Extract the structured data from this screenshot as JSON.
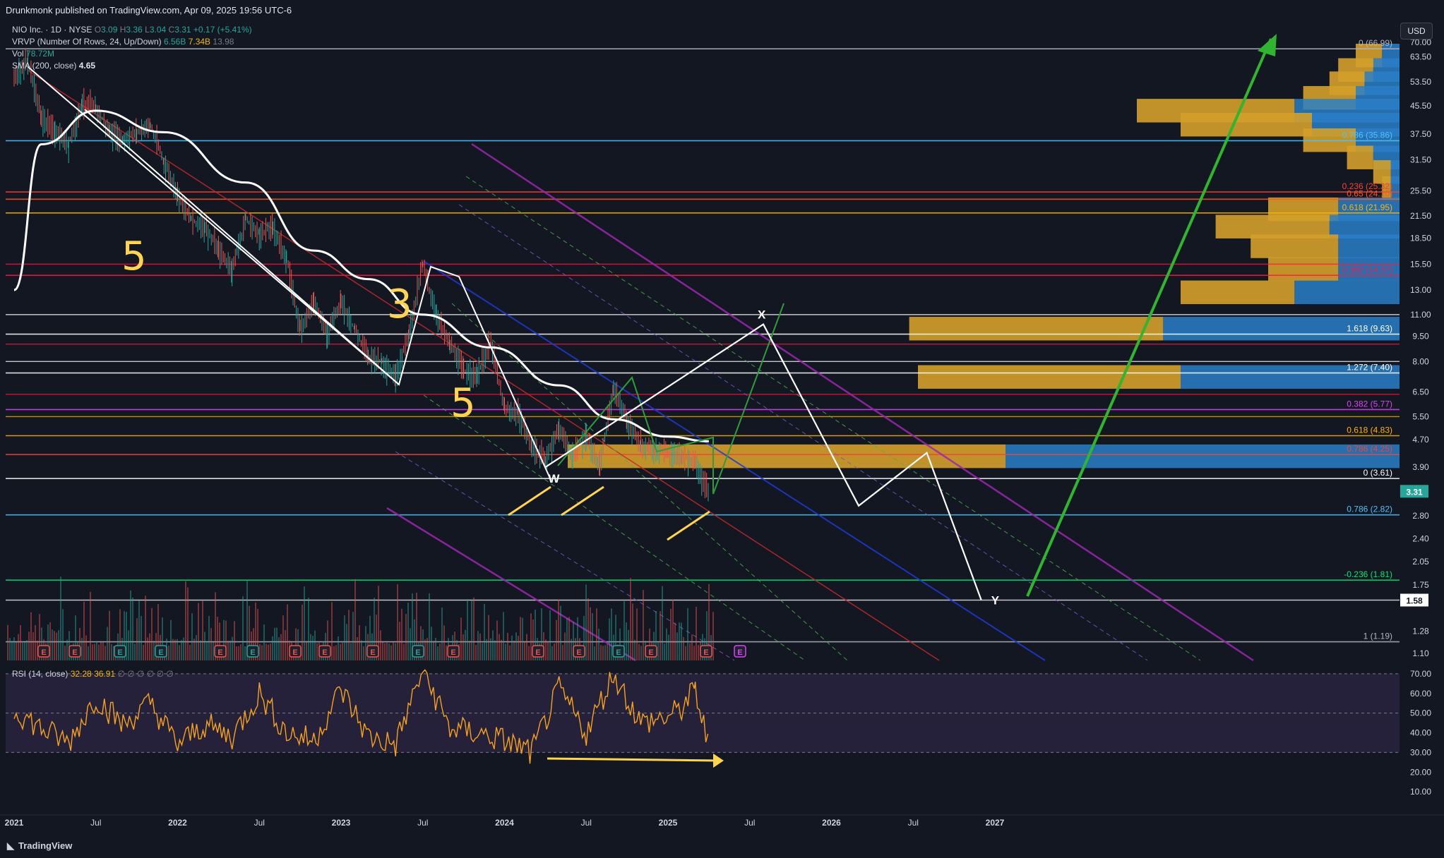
{
  "header": {
    "published": "Drunkmonk published on TradingView.com, Apr 09, 2025 19:56 UTC-6",
    "symbol": "NIO Inc. · 1D · NYSE",
    "ohlc": {
      "o_label": "O",
      "o": "3.09",
      "h_label": "H",
      "h": "3.36",
      "l_label": "L",
      "l": "3.04",
      "c_label": "C",
      "c": "3.31",
      "change": "+0.17 (+5.41%)"
    },
    "vrvp_label": "VRVP (Number Of Rows, 24, Up/Down)",
    "vrvp_up": "6.56B",
    "vrvp_down": "7.34B",
    "vrvp_total": "13.98",
    "vol_label": "Vol",
    "vol": "78.72M",
    "sma_label": "SMA (200, close)",
    "sma": "4.65",
    "rsi_label": "RSI (14, close)",
    "rsi1": "32.28",
    "rsi2": "36.91",
    "rsi_tail": "∅ ∅ ∅ ∅ ∅ ∅",
    "currency": "USD",
    "brand": "TradingView"
  },
  "colors": {
    "bg": "#131722",
    "up": "#26a69a",
    "down": "#ef5350",
    "sma": "#ffffff",
    "rsi": "#f7a21b",
    "rsi_band": "#2a2340",
    "gold": "#d4a02a",
    "blue": "#2a7fc7"
  },
  "chart_data": {
    "type": "line",
    "title": "NIO Inc. · 1D · NYSE",
    "y_scale": "log",
    "price_axis_ticks": [
      "70.00",
      "63.50",
      "53.50",
      "45.50",
      "37.50",
      "31.50",
      "25.50",
      "21.50",
      "18.50",
      "15.50",
      "13.00",
      "11.00",
      "9.50",
      "8.00",
      "6.50",
      "5.50",
      "4.70",
      "3.90",
      "2.80",
      "2.40",
      "2.05",
      "1.75",
      "1.28",
      "1.10"
    ],
    "time_axis_ticks": [
      "2021",
      "Jul",
      "2022",
      "Jul",
      "2023",
      "Jul",
      "2024",
      "Jul",
      "2025",
      "Jul",
      "2026",
      "Jul",
      "2027"
    ],
    "rsi_axis_ticks": [
      "70.00",
      "60.00",
      "50.00",
      "40.00",
      "30.00",
      "20.00",
      "10.00"
    ],
    "last_price": "3.31",
    "marked_price": "1.58",
    "price_series": [
      {
        "date": "2021-01",
        "close": 55
      },
      {
        "date": "2021-02",
        "close": 62
      },
      {
        "date": "2021-03",
        "close": 42
      },
      {
        "date": "2021-04",
        "close": 38
      },
      {
        "date": "2021-05",
        "close": 35
      },
      {
        "date": "2021-06",
        "close": 46
      },
      {
        "date": "2021-07",
        "close": 45
      },
      {
        "date": "2021-08",
        "close": 38
      },
      {
        "date": "2021-09",
        "close": 36
      },
      {
        "date": "2021-10",
        "close": 38
      },
      {
        "date": "2021-11",
        "close": 40
      },
      {
        "date": "2021-12",
        "close": 31
      },
      {
        "date": "2022-01",
        "close": 25
      },
      {
        "date": "2022-02",
        "close": 21
      },
      {
        "date": "2022-03",
        "close": 20
      },
      {
        "date": "2022-04",
        "close": 17
      },
      {
        "date": "2022-05",
        "close": 15
      },
      {
        "date": "2022-06",
        "close": 21
      },
      {
        "date": "2022-07",
        "close": 19
      },
      {
        "date": "2022-08",
        "close": 20
      },
      {
        "date": "2022-09",
        "close": 16
      },
      {
        "date": "2022-10",
        "close": 10
      },
      {
        "date": "2022-11",
        "close": 12
      },
      {
        "date": "2022-12",
        "close": 9.7
      },
      {
        "date": "2023-01",
        "close": 12
      },
      {
        "date": "2023-02",
        "close": 10
      },
      {
        "date": "2023-03",
        "close": 8.3
      },
      {
        "date": "2023-04",
        "close": 8.0
      },
      {
        "date": "2023-05",
        "close": 7.2
      },
      {
        "date": "2023-06",
        "close": 9.7
      },
      {
        "date": "2023-07",
        "close": 15.5
      },
      {
        "date": "2023-08",
        "close": 11
      },
      {
        "date": "2023-09",
        "close": 9.0
      },
      {
        "date": "2023-10",
        "close": 7.5
      },
      {
        "date": "2023-11",
        "close": 7.3
      },
      {
        "date": "2023-12",
        "close": 9.1
      },
      {
        "date": "2024-01",
        "close": 5.8
      },
      {
        "date": "2024-02",
        "close": 5.6
      },
      {
        "date": "2024-03",
        "close": 4.5
      },
      {
        "date": "2024-04",
        "close": 4.1
      },
      {
        "date": "2024-05",
        "close": 5.1
      },
      {
        "date": "2024-06",
        "close": 4.2
      },
      {
        "date": "2024-07",
        "close": 4.8
      },
      {
        "date": "2024-08",
        "close": 3.9
      },
      {
        "date": "2024-09",
        "close": 6.7
      },
      {
        "date": "2024-10",
        "close": 5.3
      },
      {
        "date": "2024-11",
        "close": 4.5
      },
      {
        "date": "2024-12",
        "close": 4.4
      },
      {
        "date": "2025-01",
        "close": 4.3
      },
      {
        "date": "2025-02",
        "close": 4.2
      },
      {
        "date": "2025-03",
        "close": 4.0
      },
      {
        "date": "2025-04",
        "close": 3.31
      }
    ],
    "sma_series": [
      {
        "date": "2021-01",
        "value": 13
      },
      {
        "date": "2021-03",
        "value": 35
      },
      {
        "date": "2021-07",
        "value": 44
      },
      {
        "date": "2021-12",
        "value": 38
      },
      {
        "date": "2022-06",
        "value": 27
      },
      {
        "date": "2022-11",
        "value": 17
      },
      {
        "date": "2023-03",
        "value": 14
      },
      {
        "date": "2023-07",
        "value": 11
      },
      {
        "date": "2023-12",
        "value": 8.8
      },
      {
        "date": "2024-05",
        "value": 6.8
      },
      {
        "date": "2024-09",
        "value": 5.4
      },
      {
        "date": "2025-01",
        "value": 4.8
      },
      {
        "date": "2025-04",
        "value": 4.65
      }
    ],
    "projection": [
      {
        "date": "2024-04",
        "value": 3.9,
        "label": "W"
      },
      {
        "date": "2025-08",
        "value": 10.3,
        "label": "X"
      },
      {
        "date": "2026-03",
        "value": 3.0
      },
      {
        "date": "2026-08",
        "value": 4.3
      },
      {
        "date": "2026-12",
        "value": 1.58,
        "label": "Y"
      }
    ],
    "fib_levels": [
      {
        "label": "0 (66.99)",
        "value": 66.99
      },
      {
        "label": "0.786 (35.86)",
        "value": 35.86
      },
      {
        "label": "0.236 (25.32)",
        "value": 25.32
      },
      {
        "label": "0.65 (24.10)",
        "value": 24.1
      },
      {
        "label": "0.618 (21.95)",
        "value": 21.95
      },
      {
        "label": "0.382 (14.37)",
        "value": 14.37
      },
      {
        "label": "1.618 (9.63)",
        "value": 9.63
      },
      {
        "label": "1.272 (7.40)",
        "value": 7.4
      },
      {
        "label": "0.382 (5.77)",
        "value": 5.77
      },
      {
        "label": "0.618 (4.83)",
        "value": 4.83
      },
      {
        "label": "0.786 (4.25)",
        "value": 4.25
      },
      {
        "label": "0 (3.61)",
        "value": 3.61
      },
      {
        "label": "0.786 (2.82)",
        "value": 2.82
      },
      {
        "label": "-0.236 (1.81)",
        "value": 1.81
      },
      {
        "label": "1 (1.19)",
        "value": 1.19
      }
    ],
    "annotations": [
      "5",
      "3",
      "5",
      "W",
      "X",
      "Y"
    ],
    "volume_profile": [
      {
        "price": 64,
        "up": 0.02,
        "down": 0.03
      },
      {
        "price": 58,
        "up": 0.03,
        "down": 0.04
      },
      {
        "price": 53,
        "up": 0.04,
        "down": 0.04
      },
      {
        "price": 48,
        "up": 0.05,
        "down": 0.06
      },
      {
        "price": 44,
        "up": 0.12,
        "down": 0.18
      },
      {
        "price": 40,
        "up": 0.1,
        "down": 0.15
      },
      {
        "price": 36,
        "up": 0.05,
        "down": 0.06
      },
      {
        "price": 32,
        "up": 0.03,
        "down": 0.03
      },
      {
        "price": 29,
        "up": 0.01,
        "down": 0.02
      },
      {
        "price": 26,
        "up": 0.01,
        "down": 0.01
      },
      {
        "price": 22.5,
        "up": 0.07,
        "down": 0.08
      },
      {
        "price": 20,
        "up": 0.08,
        "down": 0.13
      },
      {
        "price": 17.5,
        "up": 0.07,
        "down": 0.1
      },
      {
        "price": 15,
        "up": 0.07,
        "down": 0.08
      },
      {
        "price": 12.8,
        "up": 0.12,
        "down": 0.13
      },
      {
        "price": 10,
        "up": 0.27,
        "down": 0.29
      },
      {
        "price": 7.2,
        "up": 0.25,
        "down": 0.3
      },
      {
        "price": 4.2,
        "up": 0.45,
        "down": 0.5
      }
    ],
    "rsi_series": [
      {
        "date": "2021-01",
        "value": 52
      },
      {
        "date": "2021-03",
        "value": 42
      },
      {
        "date": "2021-05",
        "value": 35
      },
      {
        "date": "2021-07",
        "value": 58
      },
      {
        "date": "2021-09",
        "value": 44
      },
      {
        "date": "2021-11",
        "value": 55
      },
      {
        "date": "2022-01",
        "value": 34
      },
      {
        "date": "2022-03",
        "value": 44
      },
      {
        "date": "2022-05",
        "value": 38
      },
      {
        "date": "2022-07",
        "value": 60
      },
      {
        "date": "2022-09",
        "value": 40
      },
      {
        "date": "2022-11",
        "value": 36
      },
      {
        "date": "2023-01",
        "value": 62
      },
      {
        "date": "2023-03",
        "value": 38
      },
      {
        "date": "2023-05",
        "value": 34
      },
      {
        "date": "2023-07",
        "value": 72
      },
      {
        "date": "2023-09",
        "value": 42
      },
      {
        "date": "2023-11",
        "value": 40
      },
      {
        "date": "2024-01",
        "value": 36
      },
      {
        "date": "2024-03",
        "value": 30
      },
      {
        "date": "2024-05",
        "value": 62
      },
      {
        "date": "2024-07",
        "value": 40
      },
      {
        "date": "2024-09",
        "value": 70
      },
      {
        "date": "2024-11",
        "value": 45
      },
      {
        "date": "2025-01",
        "value": 48
      },
      {
        "date": "2025-02",
        "value": 52
      },
      {
        "date": "2025-03",
        "value": 62
      },
      {
        "date": "2025-04",
        "value": 32
      }
    ],
    "grid": false
  }
}
